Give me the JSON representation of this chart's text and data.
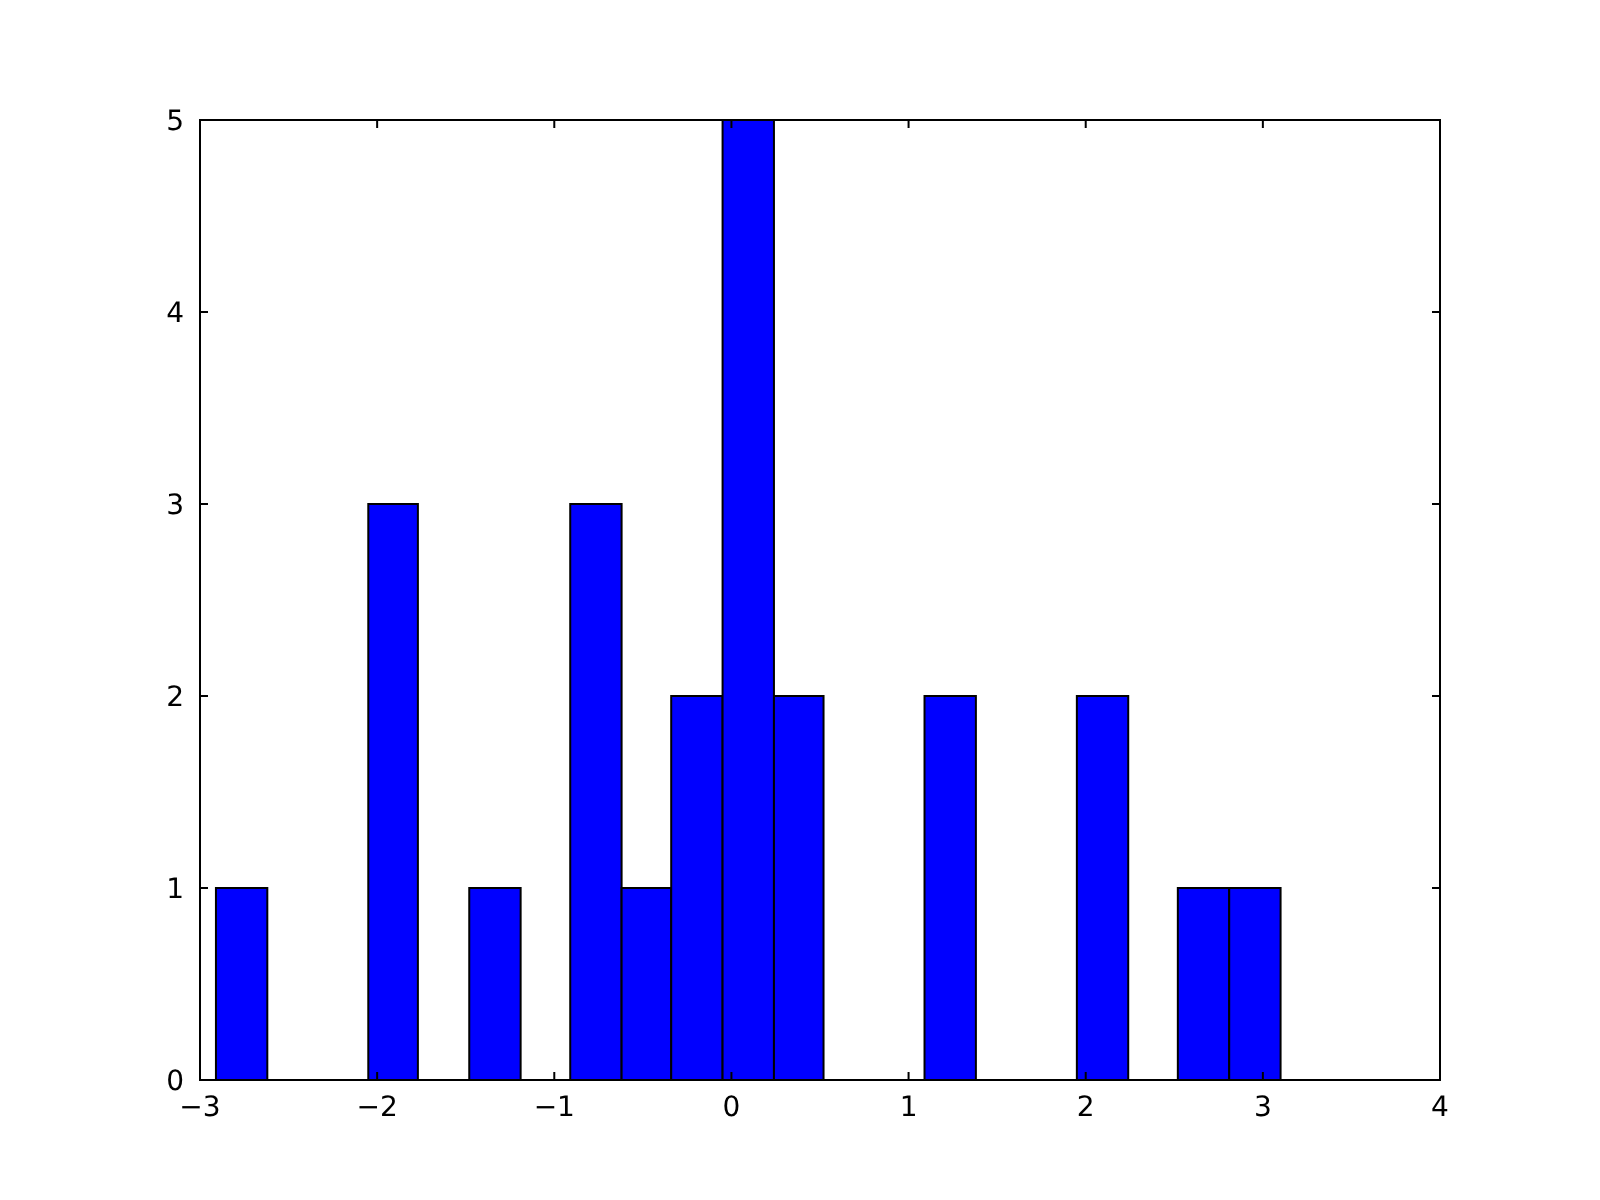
{
  "chart_data": {
    "type": "histogram",
    "bins": [
      -2.91,
      -2.62,
      -2.05,
      -1.77,
      -1.48,
      -1.19,
      -0.91,
      -0.62,
      -0.34,
      -0.05,
      0.24,
      0.52,
      1.09,
      1.38,
      1.95,
      2.24,
      2.52,
      2.81,
      3.1
    ],
    "values": [
      1,
      0,
      3,
      0,
      1,
      0,
      3,
      1,
      2,
      5,
      2,
      0,
      2,
      0,
      2,
      0,
      1,
      1
    ],
    "color": "#0000ff",
    "xlim": [
      -3,
      4
    ],
    "xticks": [
      {
        "value": -3,
        "label": "−3"
      },
      {
        "value": -2,
        "label": "−2"
      },
      {
        "value": -1,
        "label": "−1"
      },
      0,
      1,
      2,
      3,
      4
    ],
    "ylim": [
      0,
      5
    ],
    "yticks": [
      0,
      1,
      2,
      3,
      4,
      5
    ],
    "grid": false
  }
}
